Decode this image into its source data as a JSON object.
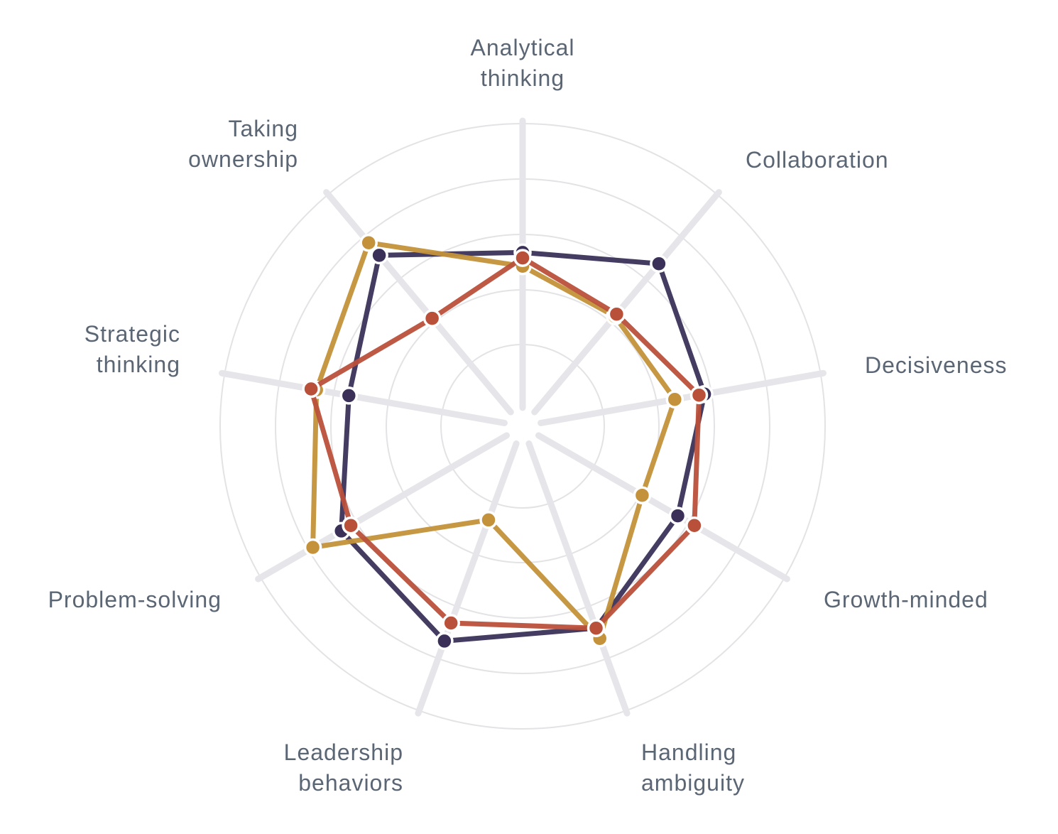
{
  "chart_data": {
    "type": "radar",
    "title": "",
    "axes": [
      {
        "lines": [
          "Analytical",
          "thinking"
        ]
      },
      {
        "lines": [
          "Collaboration"
        ]
      },
      {
        "lines": [
          "Decisiveness"
        ]
      },
      {
        "lines": [
          "Growth-minded"
        ]
      },
      {
        "lines": [
          "Handling",
          "ambiguity"
        ]
      },
      {
        "lines": [
          "Leadership",
          "behaviors"
        ]
      },
      {
        "lines": [
          "Problem-solving"
        ]
      },
      {
        "lines": [
          "Strategic",
          "thinking"
        ]
      },
      {
        "lines": [
          "Taking",
          "ownership"
        ]
      }
    ],
    "range": [
      0,
      1
    ],
    "rings": 5,
    "grid": true,
    "series": [
      {
        "color": "#3b3158",
        "values": [
          0.53,
          0.67,
          0.57,
          0.55,
          0.68,
          0.73,
          0.66,
          0.54,
          0.71
        ]
      },
      {
        "color": "#c4923a",
        "values": [
          0.48,
          0.42,
          0.46,
          0.4,
          0.72,
          0.26,
          0.78,
          0.66,
          0.77
        ]
      },
      {
        "color": "#b9503a",
        "values": [
          0.51,
          0.43,
          0.55,
          0.62,
          0.68,
          0.66,
          0.62,
          0.68,
          0.41
        ]
      }
    ]
  }
}
